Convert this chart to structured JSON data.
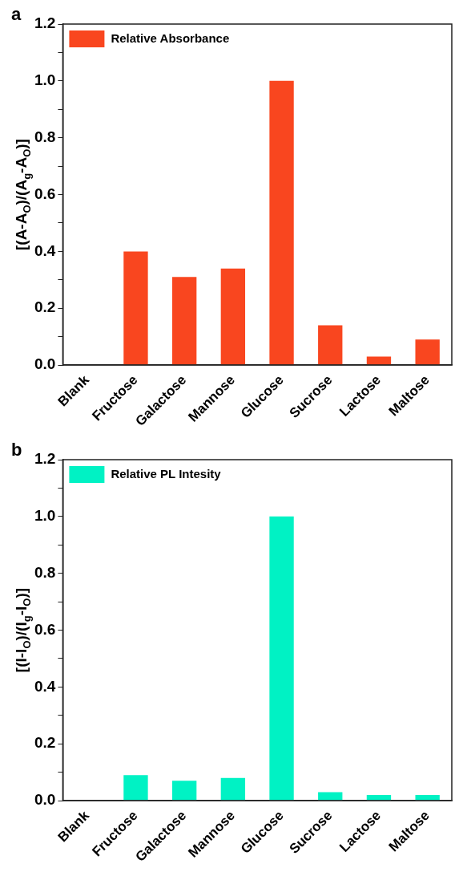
{
  "chart_data": [
    {
      "type": "bar",
      "title": "a",
      "ylabel": "[(A-A$_{O}$)/(A$_{g}$-A$_{O}$)]",
      "legend": "top left",
      "categories": [
        "Blank",
        "Fructose",
        "Galactose",
        "Mannose",
        "Glucose",
        "Sucrose",
        "Lactose",
        "Maltose"
      ],
      "series": [
        {
          "name": "Relative Absorbance",
          "color": "#f9461f",
          "values": [
            0,
            0.4,
            0.31,
            0.34,
            1.0,
            0.14,
            0.03,
            0.09
          ]
        }
      ],
      "ylim": [
        0,
        1.2
      ],
      "yticks": [
        {
          "value": 0,
          "label": "0.0"
        },
        {
          "value": 0.1,
          "label": null
        },
        0.2,
        {
          "value": 0.3,
          "label": null
        },
        0.4,
        {
          "value": 0.5,
          "label": null
        },
        0.6,
        {
          "value": 0.7,
          "label": null
        },
        0.8,
        {
          "value": 0.9,
          "label": null
        },
        {
          "value": 1,
          "label": "1.0"
        },
        {
          "value": 1.1,
          "label": null
        },
        1.2
      ],
      "grid": false
    },
    {
      "type": "bar",
      "title": "b",
      "ylabel": "[(I-I$_{O}$)/(I$_{g}$-I$_{O}$)]",
      "legend": "top left",
      "categories": [
        "Blank",
        "Fructose",
        "Galactose",
        "Mannose",
        "Glucose",
        "Sucrose",
        "Lactose",
        "Maltose"
      ],
      "series": [
        {
          "name": "Relative PL Intesity",
          "color": "#00f2c4",
          "values": [
            0,
            0.09,
            0.07,
            0.08,
            1.0,
            0.03,
            0.02,
            0.02
          ]
        }
      ],
      "ylim": [
        0,
        1.2
      ],
      "yticks": [
        {
          "value": 0,
          "label": "0.0"
        },
        {
          "value": 0.1,
          "label": null
        },
        0.2,
        {
          "value": 0.3,
          "label": null
        },
        0.4,
        {
          "value": 0.5,
          "label": null
        },
        0.6,
        {
          "value": 0.7,
          "label": null
        },
        0.8,
        {
          "value": 0.9,
          "label": null
        },
        {
          "value": 1,
          "label": "1.0"
        },
        {
          "value": 1.1,
          "label": null
        },
        1.2
      ],
      "grid": false
    }
  ]
}
